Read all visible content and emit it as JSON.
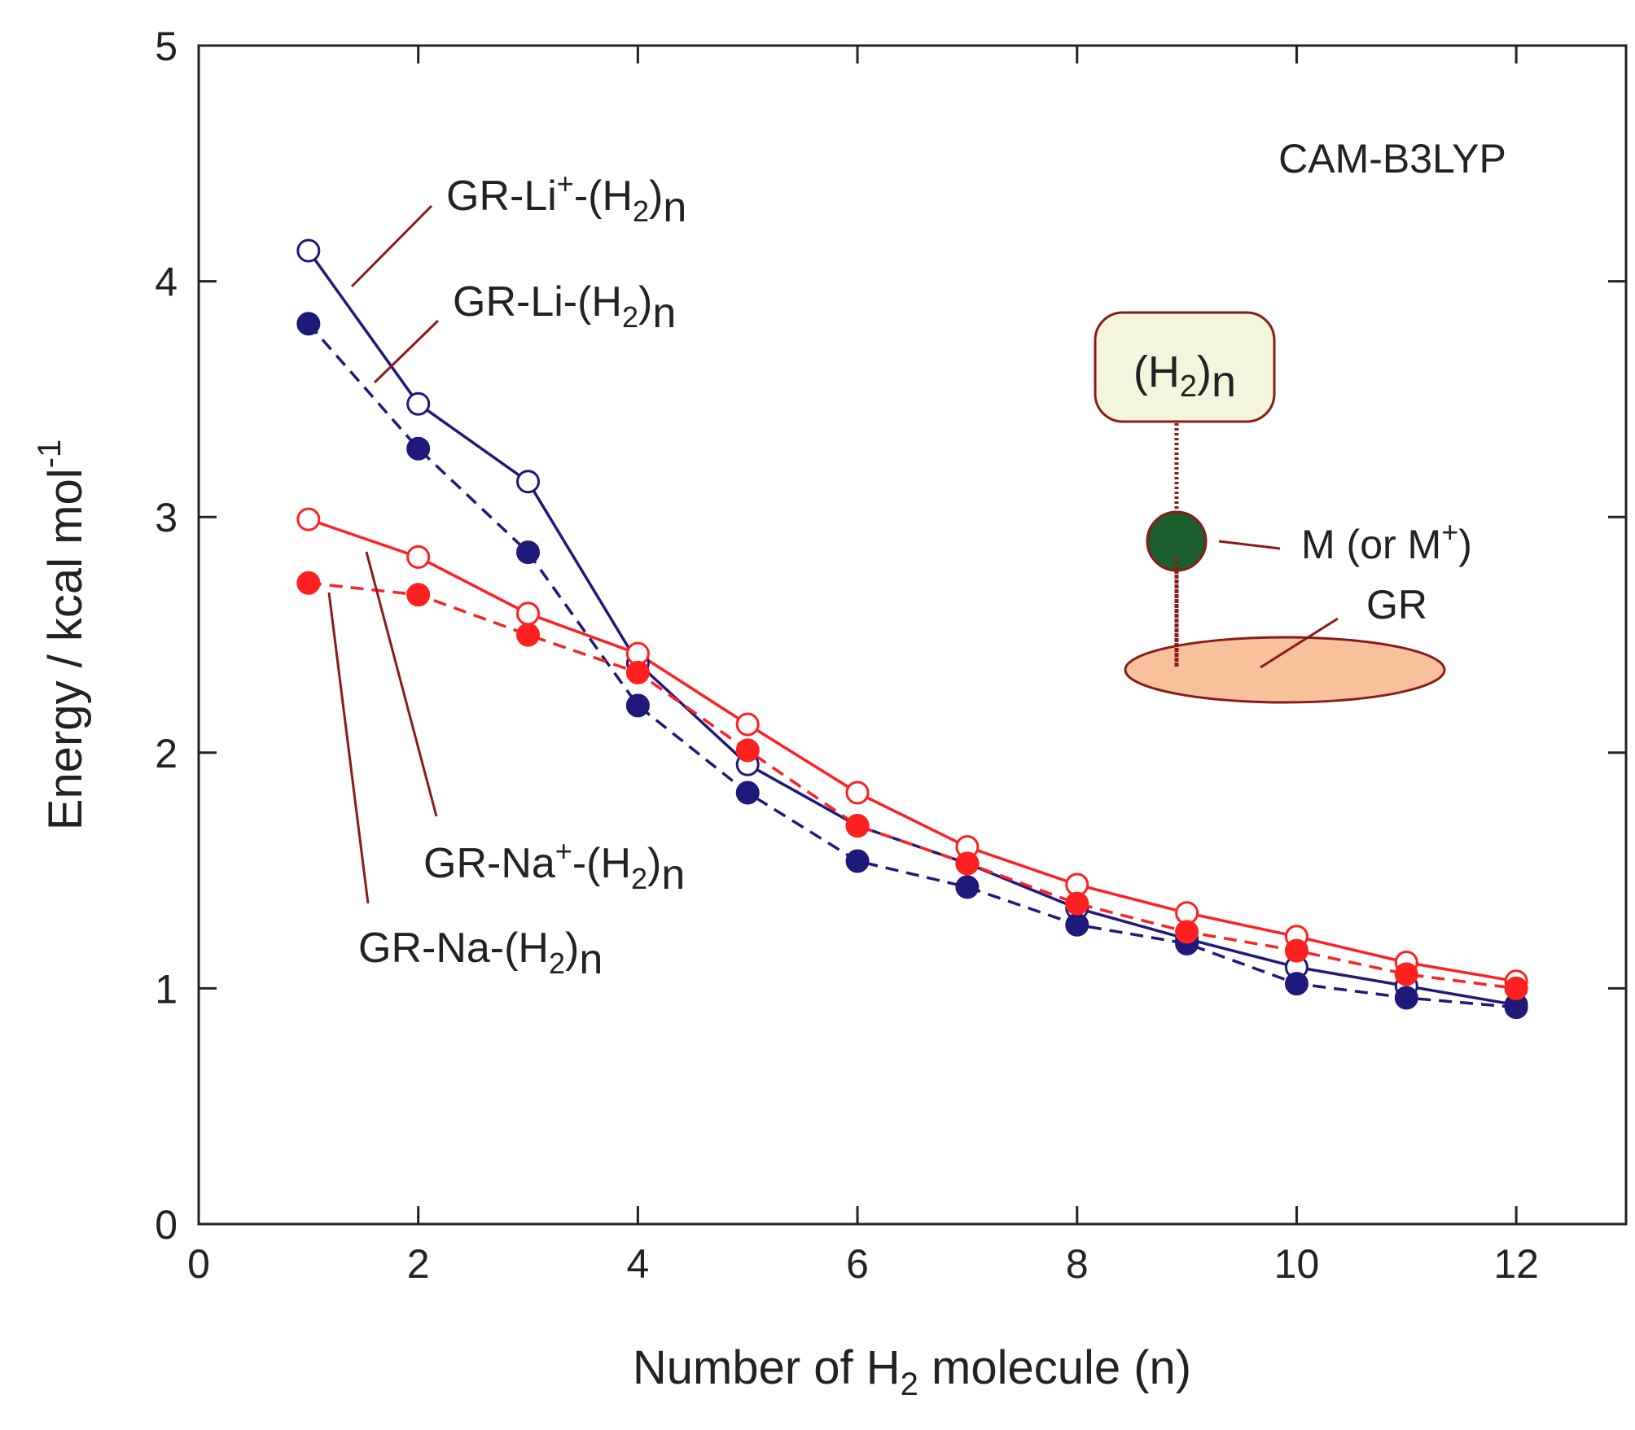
{
  "chart_data": {
    "type": "line",
    "title": "",
    "method_label": "CAM-B3LYP",
    "xlabel": {
      "prefix": "Number of H",
      "sub": "2",
      "suffix": " molecule (n)"
    },
    "ylabel": {
      "text": "Energy / kcal mol",
      "sup": "-1"
    },
    "xlim": [
      0,
      13
    ],
    "ylim": [
      0,
      5
    ],
    "x_ticks": [
      0,
      2,
      4,
      6,
      8,
      10,
      12
    ],
    "y_ticks": [
      0,
      1,
      2,
      3,
      4,
      5
    ],
    "x_tick_labels": [
      "0",
      "2",
      "4",
      "6",
      "8",
      "10",
      "12"
    ],
    "y_tick_labels": [
      "0",
      "1",
      "2",
      "3",
      "4",
      "5"
    ],
    "x": [
      1,
      2,
      3,
      4,
      5,
      6,
      7,
      8,
      9,
      10,
      11,
      12
    ],
    "series": [
      {
        "id": "li-plus",
        "name": "GR-Li+-(H2)n",
        "color": "#1f1a7a",
        "dashed": false,
        "filled": false,
        "label": {
          "pre": "GR-Li",
          "sup": "+",
          "mid": "-(H",
          "sub": "2",
          "post": ")",
          "sub2": "n"
        },
        "values": [
          4.13,
          3.48,
          3.15,
          2.38,
          1.95,
          1.69,
          1.53,
          1.34,
          1.21,
          1.09,
          1.01,
          0.93
        ]
      },
      {
        "id": "li",
        "name": "GR-Li-(H2)n",
        "color": "#1f1a7a",
        "dashed": true,
        "filled": true,
        "label": {
          "pre": "GR-Li-(H",
          "sup": "",
          "mid": "",
          "sub": "2",
          "post": ")",
          "sub2": "n"
        },
        "values": [
          3.82,
          3.29,
          2.85,
          2.2,
          1.83,
          1.54,
          1.43,
          1.27,
          1.19,
          1.02,
          0.96,
          0.92
        ]
      },
      {
        "id": "na-plus",
        "name": "GR-Na+-(H2)n",
        "color": "#ff2020",
        "dashed": false,
        "filled": false,
        "label": {
          "pre": "GR-Na",
          "sup": "+",
          "mid": "-(H",
          "sub": "2",
          "post": ")",
          "sub2": "n"
        },
        "values": [
          2.99,
          2.83,
          2.59,
          2.42,
          2.12,
          1.83,
          1.6,
          1.44,
          1.32,
          1.22,
          1.11,
          1.03
        ]
      },
      {
        "id": "na",
        "name": "GR-Na-(H2)n",
        "color": "#ff2020",
        "dashed": true,
        "filled": true,
        "label": {
          "pre": "GR-Na-(H",
          "sup": "",
          "mid": "",
          "sub": "2",
          "post": ")",
          "sub2": "n"
        },
        "values": [
          2.72,
          2.67,
          2.5,
          2.34,
          2.01,
          1.69,
          1.53,
          1.36,
          1.24,
          1.16,
          1.06,
          1.0
        ]
      }
    ],
    "inset": {
      "box_label": {
        "pre": "(H",
        "sub": "2",
        "post": ")",
        "sub2": "n"
      },
      "metal_label": {
        "pre": "M (or M",
        "sup": "+",
        "post": ")"
      },
      "surface_label": "GR",
      "box_fill": "#f3f6dc",
      "outline_color": "#8b1a1a",
      "metal_fill": "#1b5e2c",
      "surface_fill": "#f7c19c"
    },
    "annotation_color": "#8b1a1a"
  }
}
